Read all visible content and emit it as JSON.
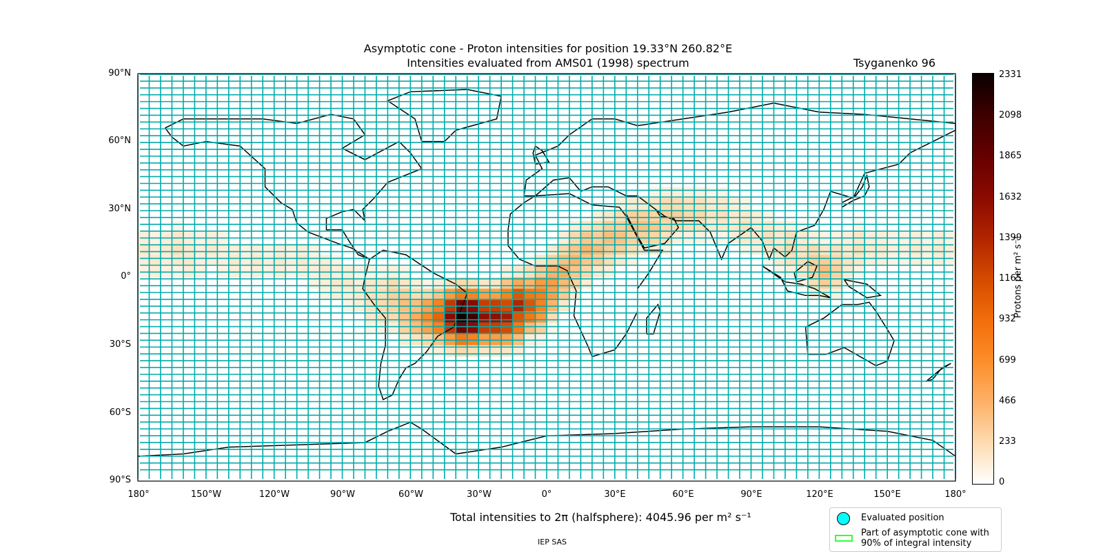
{
  "title_line1": "Asymptotic cone - Proton intensities for position 19.33°N 260.82°E",
  "title_line2": "Intensities evaluated from AMS01 (1998) spectrum",
  "model": "Tsyganenko 96",
  "lat_ticks": [
    "90°N",
    "60°N",
    "30°N",
    "0°",
    "30°S",
    "60°S",
    "90°S"
  ],
  "lon_ticks": [
    "180°",
    "150°W",
    "120°W",
    "90°W",
    "60°W",
    "30°W",
    "0°",
    "30°E",
    "60°E",
    "90°E",
    "120°E",
    "150°E",
    "180°"
  ],
  "colorbar": {
    "label": "Protons per m² s⁻¹",
    "ticks": [
      "0",
      "233",
      "466",
      "699",
      "932",
      "1165",
      "1399",
      "1632",
      "1865",
      "2098",
      "2331"
    ],
    "min": 0,
    "max": 2331
  },
  "total": "Total intensities to 2π (halfsphere): 4045.96 per m² s⁻¹",
  "credit": "IEP SAS",
  "legend": {
    "item1": "Evaluated position",
    "item2_line1": "Part of asymptotic cone with",
    "item2_line2": "90% of integral intensity"
  },
  "map": {
    "grid_color": "#00aaaa",
    "lon_step_deg": 5,
    "lat_step_deg": 5,
    "colormap": "gist_heat_r",
    "intensity_cells": [
      {
        "lon": -180,
        "lat": 10,
        "v": 150
      },
      {
        "lon": -175,
        "lat": 5,
        "v": 150
      },
      {
        "lon": -165,
        "lat": 10,
        "v": 200
      },
      {
        "lon": -160,
        "lat": 5,
        "v": 150
      },
      {
        "lon": -150,
        "lat": 10,
        "v": 150
      },
      {
        "lon": -140,
        "lat": 5,
        "v": 150
      },
      {
        "lon": -130,
        "lat": 5,
        "v": 150
      },
      {
        "lon": -120,
        "lat": 5,
        "v": 150
      },
      {
        "lon": -110,
        "lat": 5,
        "v": 150
      },
      {
        "lon": -100,
        "lat": 0,
        "v": 150
      },
      {
        "lon": -95,
        "lat": -5,
        "v": 150
      },
      {
        "lon": -90,
        "lat": -5,
        "v": 150
      },
      {
        "lon": -85,
        "lat": -10,
        "v": 150
      },
      {
        "lon": -80,
        "lat": -10,
        "v": 200
      },
      {
        "lon": -75,
        "lat": -15,
        "v": 250
      },
      {
        "lon": -70,
        "lat": -10,
        "v": 300
      },
      {
        "lon": -65,
        "lat": -15,
        "v": 400
      },
      {
        "lon": -60,
        "lat": -20,
        "v": 500
      },
      {
        "lon": -55,
        "lat": -20,
        "v": 700
      },
      {
        "lon": -50,
        "lat": -20,
        "v": 1000
      },
      {
        "lon": -45,
        "lat": -20,
        "v": 1300
      },
      {
        "lon": -40,
        "lat": -20,
        "v": 2300
      },
      {
        "lon": -35,
        "lat": -20,
        "v": 2100
      },
      {
        "lon": -30,
        "lat": -20,
        "v": 1600
      },
      {
        "lon": -25,
        "lat": -20,
        "v": 1600
      },
      {
        "lon": -20,
        "lat": -20,
        "v": 1500
      },
      {
        "lon": -15,
        "lat": -15,
        "v": 1400
      },
      {
        "lon": -10,
        "lat": -15,
        "v": 1100
      },
      {
        "lon": -5,
        "lat": -10,
        "v": 800
      },
      {
        "lon": 0,
        "lat": -5,
        "v": 600
      },
      {
        "lon": 5,
        "lat": 0,
        "v": 500
      },
      {
        "lon": 10,
        "lat": 5,
        "v": 450
      },
      {
        "lon": 15,
        "lat": 10,
        "v": 450
      },
      {
        "lon": 20,
        "lat": 10,
        "v": 400
      },
      {
        "lon": 25,
        "lat": 15,
        "v": 400
      },
      {
        "lon": 30,
        "lat": 15,
        "v": 380
      },
      {
        "lon": 35,
        "lat": 20,
        "v": 380
      },
      {
        "lon": 40,
        "lat": 20,
        "v": 380
      },
      {
        "lon": 45,
        "lat": 20,
        "v": 350
      },
      {
        "lon": 50,
        "lat": 25,
        "v": 300
      },
      {
        "lon": 55,
        "lat": 25,
        "v": 300
      },
      {
        "lon": 60,
        "lat": 25,
        "v": 250
      },
      {
        "lon": 65,
        "lat": 25,
        "v": 250
      },
      {
        "lon": 75,
        "lat": 25,
        "v": 200
      },
      {
        "lon": 85,
        "lat": 20,
        "v": 200
      },
      {
        "lon": 95,
        "lat": 15,
        "v": 200
      },
      {
        "lon": 105,
        "lat": 10,
        "v": 250
      },
      {
        "lon": 115,
        "lat": 5,
        "v": 300
      },
      {
        "lon": 120,
        "lat": 0,
        "v": 400
      },
      {
        "lon": 125,
        "lat": 5,
        "v": 250
      },
      {
        "lon": 135,
        "lat": 10,
        "v": 200
      },
      {
        "lon": 145,
        "lat": 10,
        "v": 150
      },
      {
        "lon": 160,
        "lat": 10,
        "v": 150
      },
      {
        "lon": 170,
        "lat": 10,
        "v": 150
      }
    ]
  }
}
